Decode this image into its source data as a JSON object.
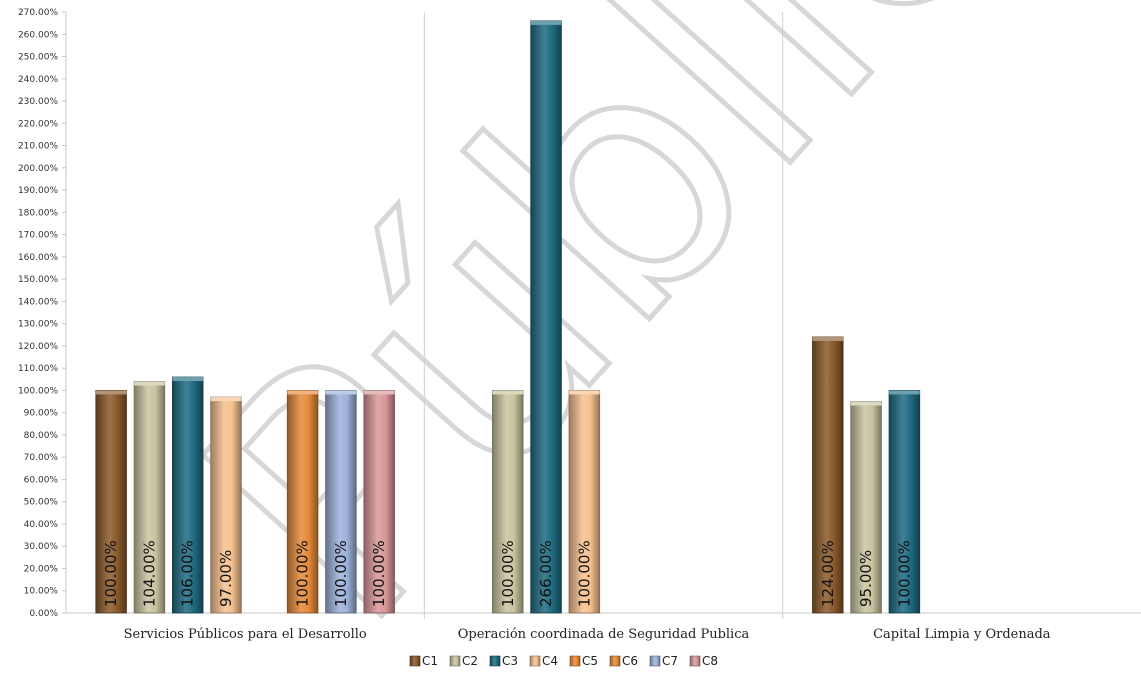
{
  "chart_data": {
    "type": "bar",
    "categories": [
      "Servicios Públicos para el Desarrollo",
      "Operación coordinada de Seguridad Publica",
      "Capital Limpia y Ordenada"
    ],
    "series": [
      {
        "name": "C1",
        "color": "#8a5a2b",
        "values": [
          100.0,
          null,
          124.0
        ]
      },
      {
        "name": "C2",
        "color": "#c9c4a0",
        "values": [
          104.0,
          100.0,
          95.0
        ]
      },
      {
        "name": "C3",
        "color": "#1f6b82",
        "values": [
          106.0,
          266.0,
          100.0
        ]
      },
      {
        "name": "C4",
        "color": "#f5c18f",
        "values": [
          97.0,
          100.0,
          null
        ]
      },
      {
        "name": "C5",
        "color": "#ee8a35",
        "values": [
          null,
          null,
          null
        ]
      },
      {
        "name": "C6",
        "color": "#e58a3a",
        "values": [
          100.0,
          null,
          null
        ]
      },
      {
        "name": "C7",
        "color": "#9db1db",
        "values": [
          100.0,
          null,
          null
        ]
      },
      {
        "name": "C8",
        "color": "#d99799",
        "values": [
          100.0,
          null,
          null
        ]
      }
    ],
    "data_labels": [
      [
        "100.00%",
        null,
        "124.00%"
      ],
      [
        "104.00%",
        "100.00%",
        "95.00%"
      ],
      [
        "106.00%",
        "266.00%",
        "100.00%"
      ],
      [
        "97.00%",
        "100.00%",
        null
      ],
      [
        null,
        null,
        null
      ],
      [
        "100.00%",
        null,
        null
      ],
      [
        "100.00%",
        null,
        null
      ],
      [
        "100.00%",
        null,
        null
      ]
    ],
    "ylim": [
      0,
      270
    ],
    "ytick_step": 10,
    "ytick_format": "0.00%",
    "legend": "bottom",
    "grid": false,
    "watermark": "Pública"
  }
}
